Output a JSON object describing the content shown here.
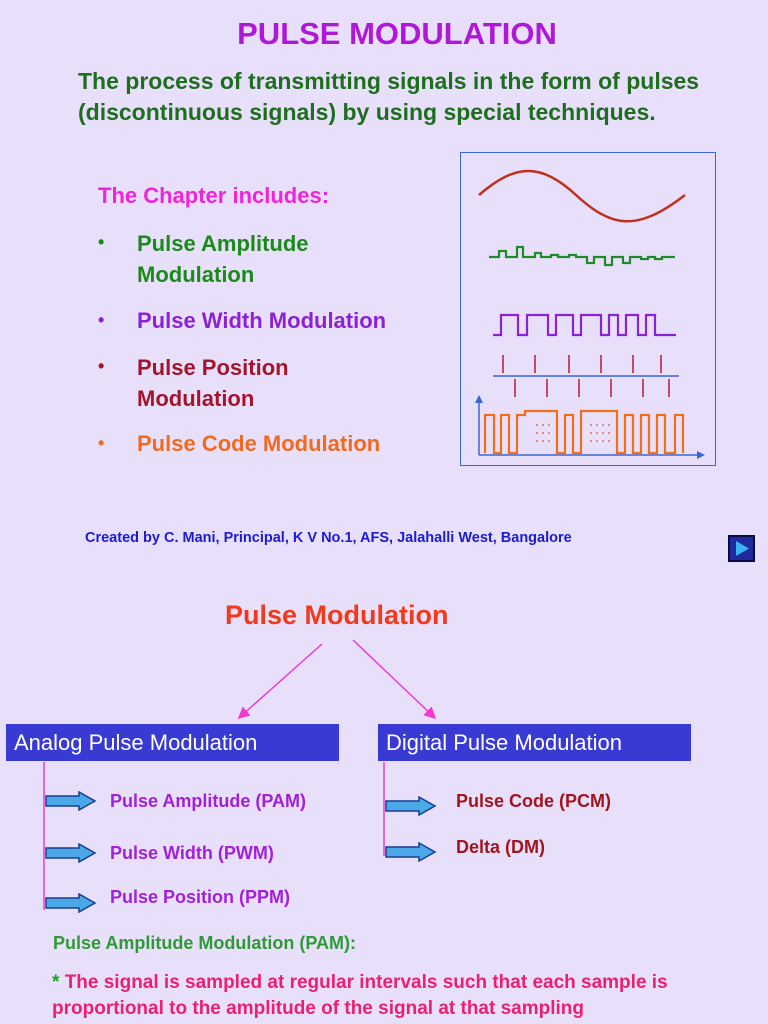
{
  "title": "PULSE MODULATION",
  "intro": "The process of transmitting signals in the form of pulses (discontinuous signals) by using special techniques.",
  "chapter_heading": "The Chapter includes:",
  "bullet_symbol": "•",
  "topics": [
    {
      "label": "Pulse Amplitude Modulation",
      "color": "#1b8a1b"
    },
    {
      "label": "Pulse Width Modulation",
      "color": "#8c22d4"
    },
    {
      "label": "Pulse Position Modulation",
      "color": "#a3152c"
    },
    {
      "label": "Pulse Code Modulation",
      "color": "#f26a1e"
    }
  ],
  "credit": "Created by C. Mani, Principal, K V No.1, AFS, Jalahalli West, Bangalore",
  "next_icon": "play-triangle-icon",
  "diagram": {
    "root": "Pulse Modulation",
    "categories": [
      {
        "label": "Analog Pulse Modulation",
        "items": [
          "Pulse Amplitude (PAM)",
          "Pulse Width (PWM)",
          "Pulse Position (PPM)"
        ]
      },
      {
        "label": "Digital Pulse Modulation",
        "items": [
          "Pulse Code (PCM)",
          "Delta (DM)"
        ]
      }
    ]
  },
  "pam_heading": "Pulse Amplitude Modulation (PAM):",
  "pam_star": "*",
  "pam_text": "The signal is sampled at regular intervals such that each sample is proportional to the amplitude of the signal at that sampling",
  "colors": {
    "background": "#e8e0fb",
    "title": "#b018d8",
    "intro": "#1f6e1f",
    "box_fill": "#3939d4",
    "arrow_fill": "#4aa8e6",
    "connector": "#ee3ad0"
  }
}
